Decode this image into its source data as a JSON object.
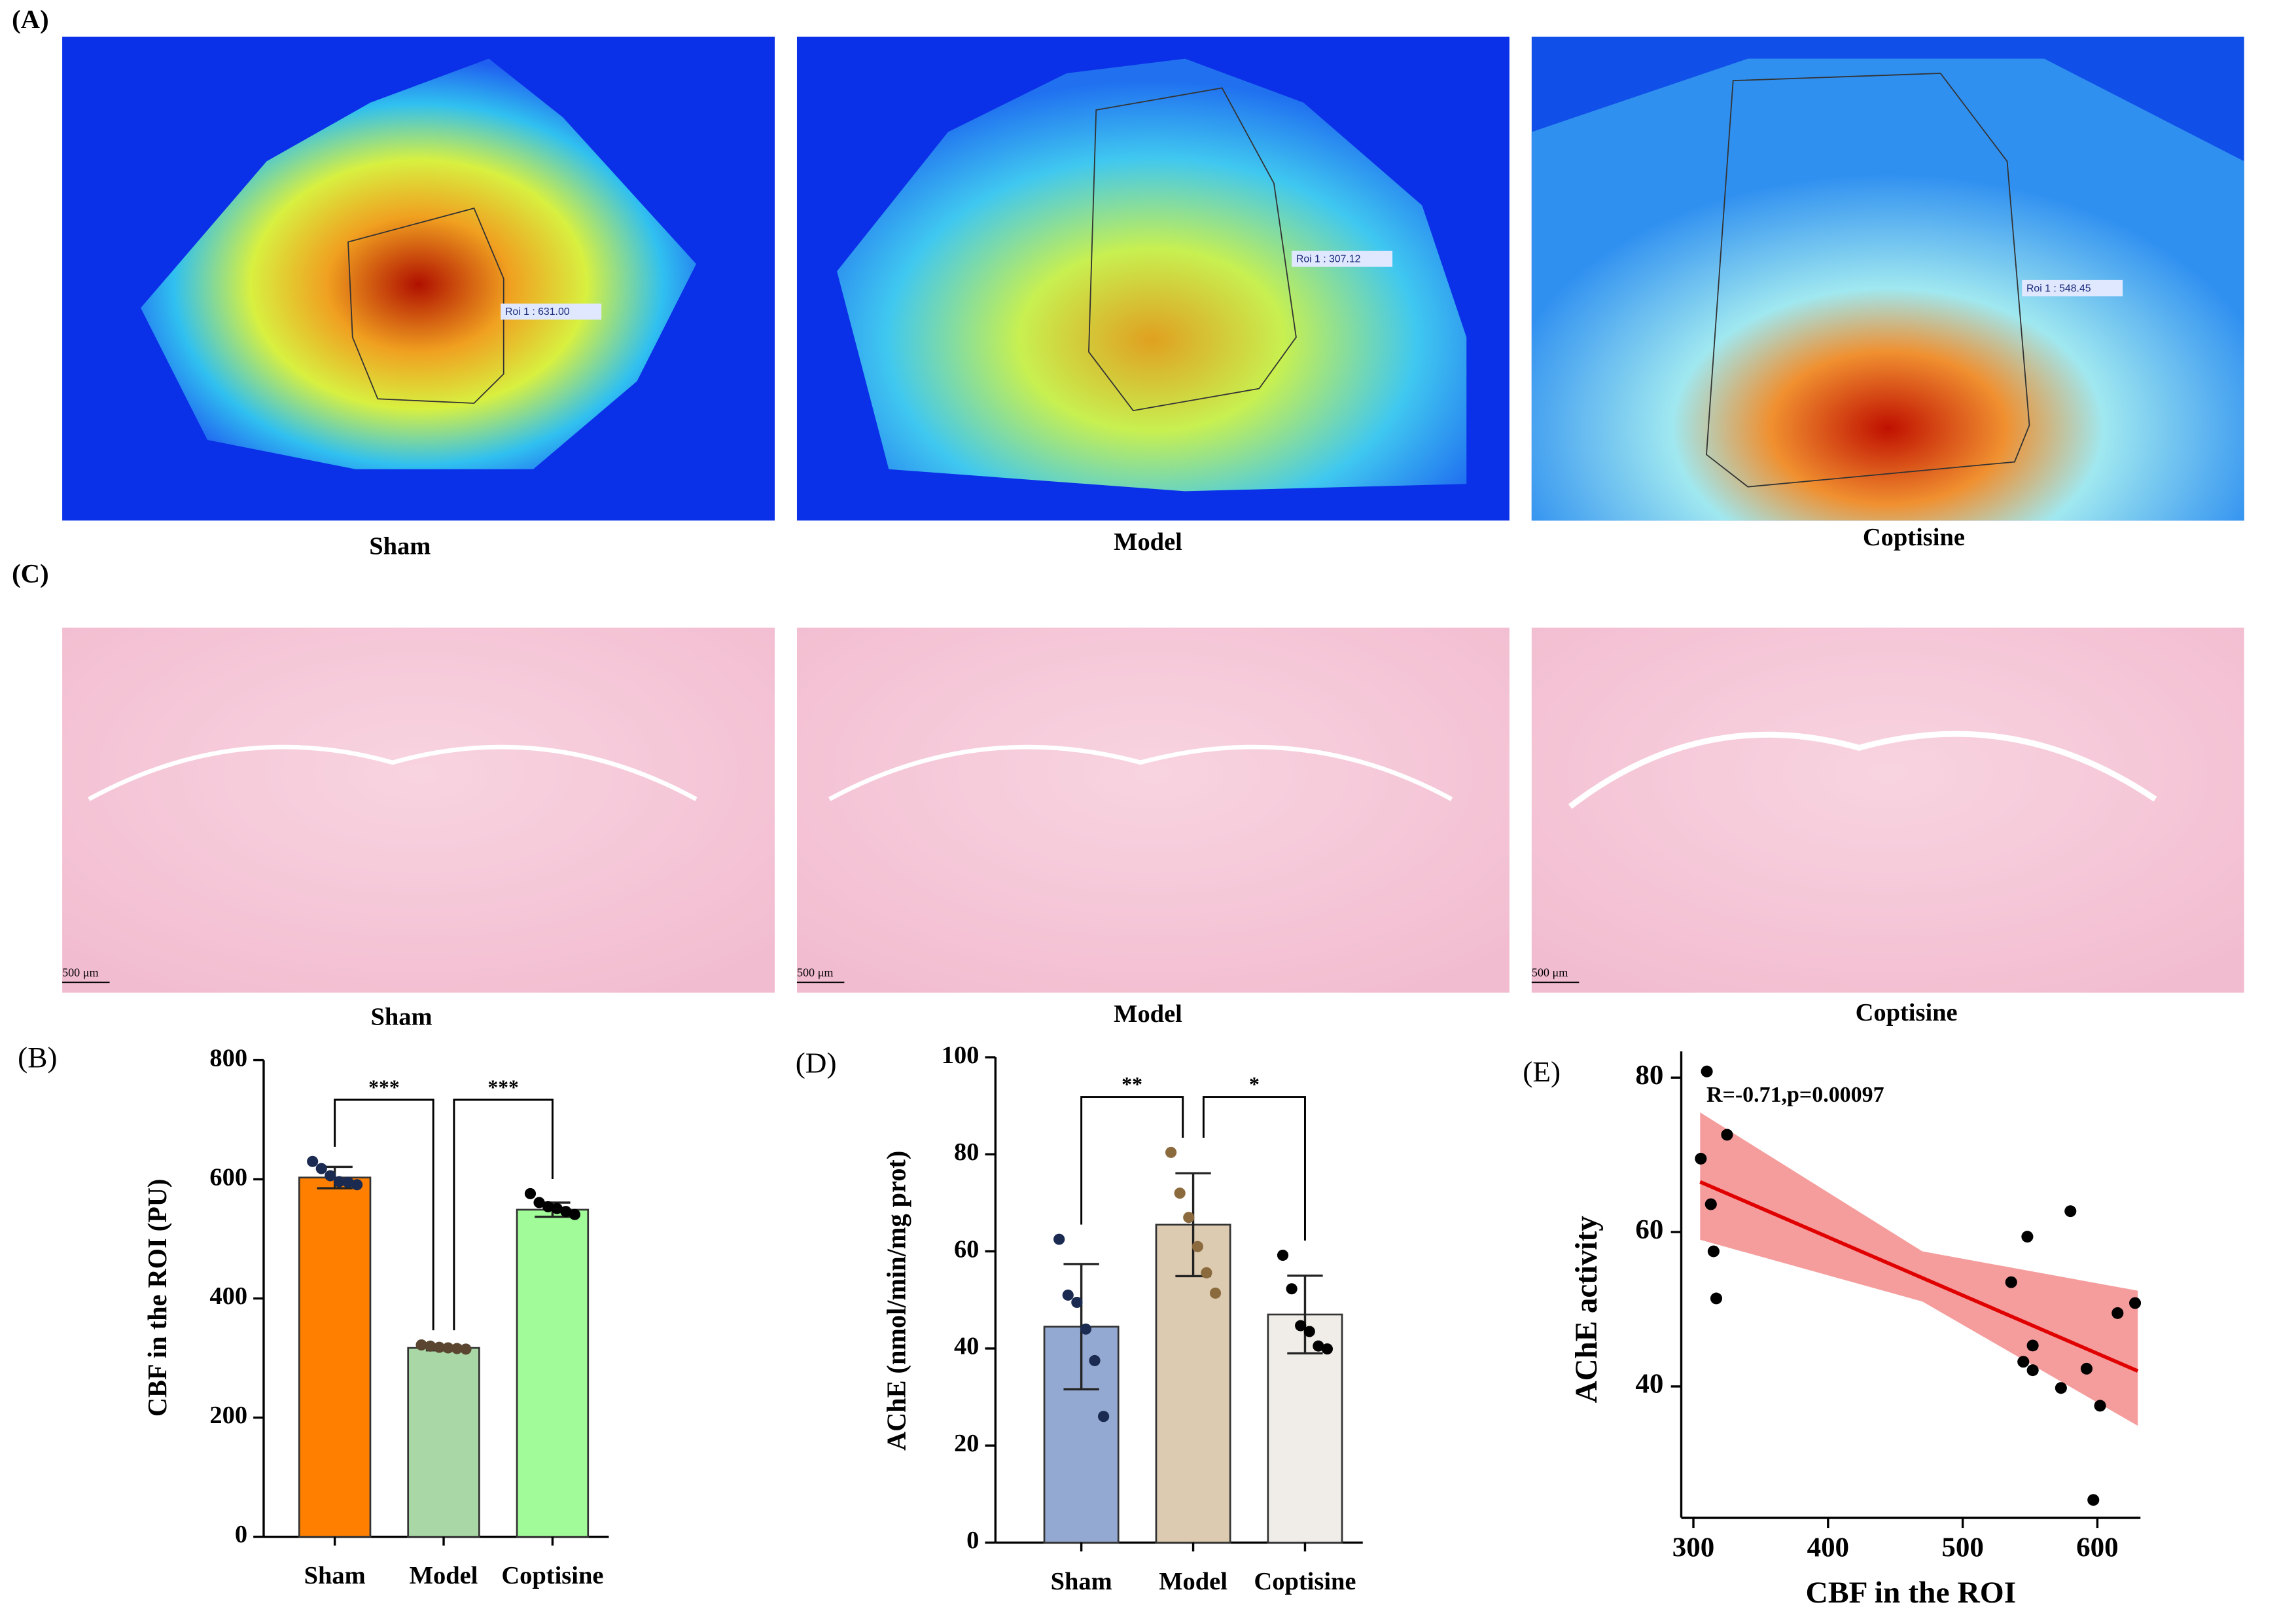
{
  "images": {
    "label_a": "(A)",
    "captions_a": [
      "Sham",
      "Model",
      "Coptisine"
    ],
    "roi_labels": [
      "Roi 1 : 631.00",
      "Roi 1 : 307.12",
      "Roi 1 : 548.45"
    ],
    "label_c": "(C)",
    "captions_c": [
      "Sham",
      "Model",
      "Coptisine"
    ],
    "scale_bars": [
      "500 μm",
      "500 μm",
      "500 μm"
    ]
  },
  "chart_data": [
    {
      "type": "bar",
      "panel_label": "(B)",
      "y_label": "CBF in the ROI (PU)",
      "categories": [
        "Sham",
        "Model",
        "Coptisine"
      ],
      "values": [
        603,
        317,
        549
      ],
      "errors": [
        18,
        4,
        12
      ],
      "colors": [
        "#ff7f00",
        "#a9d8a6",
        "#a0fb98"
      ],
      "points": [
        [
          630,
          618,
          606,
          596,
          595,
          591
        ],
        [
          322,
          320,
          318,
          317,
          316,
          315
        ],
        [
          576,
          561,
          554,
          551,
          546,
          541
        ]
      ],
      "point_colors": [
        "#1a2a50",
        "#5a4630",
        "#000000"
      ],
      "comparisons": [
        {
          "groups": [
            0,
            1
          ],
          "label": "***"
        },
        {
          "groups": [
            1,
            2
          ],
          "label": "***"
        }
      ],
      "ylim": [
        0,
        800
      ],
      "yticks": [
        0,
        200,
        400,
        600,
        800
      ]
    },
    {
      "type": "bar",
      "panel_label": "(D)",
      "y_label": "AChE (nmol/min/mg prot)",
      "categories": [
        "Sham",
        "Model",
        "Coptisine"
      ],
      "values": [
        44.5,
        65.5,
        47
      ],
      "errors": [
        12.9,
        10.6,
        8
      ],
      "colors": [
        "#94a9d2",
        "#dccbb0",
        "#f0ede8"
      ],
      "points": [
        [
          62.5,
          51,
          49.5,
          44,
          37.5,
          26
        ],
        [
          80.4,
          72,
          67,
          61,
          55.6,
          51.4
        ],
        [
          59.2,
          52.3,
          44.7,
          43.5,
          40.5,
          39.9
        ]
      ],
      "point_colors": [
        "#1a2a50",
        "#8b6a3e",
        "#000000"
      ],
      "comparisons": [
        {
          "groups": [
            0,
            1
          ],
          "label": "**"
        },
        {
          "groups": [
            1,
            2
          ],
          "label": "*"
        }
      ],
      "ylim": [
        0,
        100
      ],
      "yticks": [
        0,
        20,
        40,
        60,
        80,
        100
      ]
    },
    {
      "type": "scatter",
      "panel_label": "(E)",
      "annotation": "R=-0.71,p=0.00097",
      "x_label": "CBF in the ROI",
      "y_label": "AChE activity",
      "x": [
        310,
        305.5,
        313,
        315,
        317,
        325,
        536,
        548,
        545,
        552,
        552,
        573,
        580,
        592,
        602,
        597,
        615,
        628
      ],
      "y": [
        80.8,
        69.5,
        63.6,
        57.5,
        51.4,
        72.6,
        53.5,
        59.4,
        43.2,
        42.1,
        45.3,
        39.8,
        62.7,
        42.3,
        37.5,
        25.3,
        49.5,
        50.8
      ],
      "color": "#000000",
      "fit": {
        "x": [
          305,
          630
        ],
        "y": [
          66.5,
          42
        ],
        "color": "#e00000"
      },
      "band": {
        "x": [
          305,
          470,
          630
        ],
        "upper": [
          75.5,
          57.5,
          52.4
        ],
        "lower": [
          59,
          51,
          34.9
        ],
        "color": "#f38b8b"
      },
      "xlim": [
        291,
        632
      ],
      "ylim": [
        23,
        83.4
      ],
      "xticks": [
        300,
        400,
        500,
        600
      ],
      "yticks": [
        40,
        60,
        80
      ]
    }
  ]
}
